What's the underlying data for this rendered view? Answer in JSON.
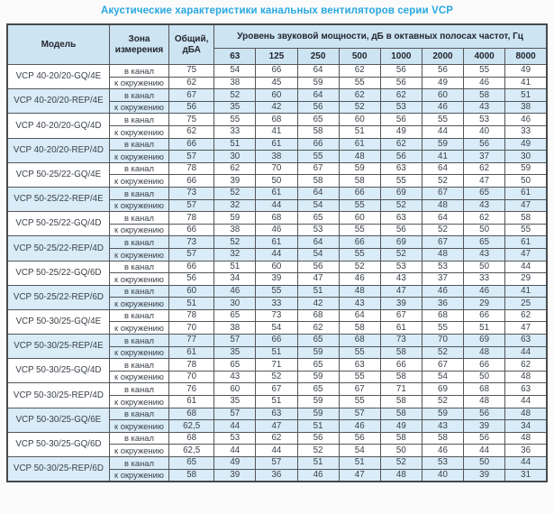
{
  "title": "Акустические характеристики канальных вентиляторов  серии VCP",
  "table": {
    "headers": {
      "model": "Модель",
      "zone": "Зона измерения",
      "total": "Общий, дБА",
      "octave_group": "Уровень звуковой мощности, дБ в октавных полосах частот, Гц",
      "frequencies": [
        "63",
        "125",
        "250",
        "500",
        "1000",
        "2000",
        "4000",
        "8000"
      ]
    },
    "zone_labels": {
      "duct": "в канал",
      "ambient": "к окружению"
    },
    "highlight_color": "#d9ecf8",
    "header_color": "#cde4f3",
    "title_color": "#29a8e0",
    "rows": [
      {
        "model": "VCP 40-20/20-GQ/4E",
        "highlight": false,
        "duct": {
          "total": "75",
          "octaves": [
            "54",
            "66",
            "64",
            "62",
            "56",
            "56",
            "55",
            "49"
          ]
        },
        "ambient": {
          "total": "62",
          "octaves": [
            "38",
            "45",
            "59",
            "55",
            "56",
            "49",
            "46",
            "41"
          ]
        }
      },
      {
        "model": "VCP 40-20/20-REP/4E",
        "highlight": true,
        "duct": {
          "total": "67",
          "octaves": [
            "52",
            "60",
            "64",
            "62",
            "62",
            "60",
            "58",
            "51"
          ]
        },
        "ambient": {
          "total": "56",
          "octaves": [
            "35",
            "42",
            "56",
            "52",
            "53",
            "46",
            "43",
            "38"
          ]
        }
      },
      {
        "model": "VCP 40-20/20-GQ/4D",
        "highlight": false,
        "duct": {
          "total": "75",
          "octaves": [
            "55",
            "68",
            "65",
            "60",
            "56",
            "55",
            "53",
            "46"
          ]
        },
        "ambient": {
          "total": "62",
          "octaves": [
            "33",
            "41",
            "58",
            "51",
            "49",
            "44",
            "40",
            "33"
          ]
        }
      },
      {
        "model": "VCP 40-20/20-REP/4D",
        "highlight": true,
        "duct": {
          "total": "66",
          "octaves": [
            "51",
            "61",
            "66",
            "61",
            "62",
            "59",
            "56",
            "49"
          ]
        },
        "ambient": {
          "total": "57",
          "octaves": [
            "30",
            "38",
            "55",
            "48",
            "56",
            "41",
            "37",
            "30"
          ]
        }
      },
      {
        "model": "VCP 50-25/22-GQ/4E",
        "highlight": false,
        "duct": {
          "total": "78",
          "octaves": [
            "62",
            "70",
            "67",
            "59",
            "63",
            "64",
            "62",
            "59"
          ]
        },
        "ambient": {
          "total": "66",
          "octaves": [
            "39",
            "50",
            "58",
            "58",
            "55",
            "52",
            "47",
            "50"
          ]
        }
      },
      {
        "model": "VCP 50-25/22-REP/4E",
        "highlight": true,
        "duct": {
          "total": "73",
          "octaves": [
            "52",
            "61",
            "64",
            "66",
            "69",
            "67",
            "65",
            "61"
          ]
        },
        "ambient": {
          "total": "57",
          "octaves": [
            "32",
            "44",
            "54",
            "55",
            "52",
            "48",
            "43",
            "47"
          ]
        }
      },
      {
        "model": "VCP 50-25/22-GQ/4D",
        "highlight": false,
        "duct": {
          "total": "78",
          "octaves": [
            "59",
            "68",
            "65",
            "60",
            "63",
            "64",
            "62",
            "58"
          ]
        },
        "ambient": {
          "total": "66",
          "octaves": [
            "38",
            "46",
            "53",
            "55",
            "56",
            "52",
            "50",
            "55"
          ]
        }
      },
      {
        "model": "VCP 50-25/22-REP/4D",
        "highlight": true,
        "duct": {
          "total": "73",
          "octaves": [
            "52",
            "61",
            "64",
            "66",
            "69",
            "67",
            "65",
            "61"
          ]
        },
        "ambient": {
          "total": "57",
          "octaves": [
            "32",
            "44",
            "54",
            "55",
            "52",
            "48",
            "43",
            "47"
          ]
        }
      },
      {
        "model": "VCP 50-25/22-GQ/6D",
        "highlight": false,
        "duct": {
          "total": "66",
          "octaves": [
            "51",
            "60",
            "56",
            "52",
            "53",
            "53",
            "50",
            "44"
          ]
        },
        "ambient": {
          "total": "56",
          "octaves": [
            "34",
            "39",
            "47",
            "46",
            "43",
            "37",
            "33",
            "29"
          ]
        }
      },
      {
        "model": "VCP 50-25/22-REP/6D",
        "highlight": true,
        "duct": {
          "total": "60",
          "octaves": [
            "46",
            "55",
            "51",
            "48",
            "47",
            "46",
            "46",
            "41"
          ]
        },
        "ambient": {
          "total": "51",
          "octaves": [
            "30",
            "33",
            "42",
            "43",
            "39",
            "36",
            "29",
            "25"
          ]
        }
      },
      {
        "model": "VCP 50-30/25-GQ/4E",
        "highlight": false,
        "duct": {
          "total": "78",
          "octaves": [
            "65",
            "73",
            "68",
            "64",
            "67",
            "68",
            "66",
            "62"
          ]
        },
        "ambient": {
          "total": "70",
          "octaves": [
            "38",
            "54",
            "62",
            "58",
            "61",
            "55",
            "51",
            "47"
          ]
        }
      },
      {
        "model": "VCP 50-30/25-REP/4E",
        "highlight": true,
        "duct": {
          "total": "77",
          "octaves": [
            "57",
            "66",
            "65",
            "68",
            "73",
            "70",
            "69",
            "63"
          ]
        },
        "ambient": {
          "total": "61",
          "octaves": [
            "35",
            "51",
            "59",
            "55",
            "58",
            "52",
            "48",
            "44"
          ]
        }
      },
      {
        "model": "VCP 50-30/25-GQ/4D",
        "highlight": false,
        "duct": {
          "total": "78",
          "octaves": [
            "65",
            "71",
            "65",
            "63",
            "66",
            "67",
            "66",
            "62"
          ]
        },
        "ambient": {
          "total": "70",
          "octaves": [
            "43",
            "52",
            "59",
            "55",
            "58",
            "54",
            "50",
            "48"
          ]
        }
      },
      {
        "model": "VCP 50-30/25-REP/4D",
        "highlight": false,
        "duct": {
          "total": "76",
          "octaves": [
            "60",
            "67",
            "65",
            "67",
            "71",
            "69",
            "68",
            "63"
          ]
        },
        "ambient": {
          "total": "61",
          "octaves": [
            "35",
            "51",
            "59",
            "55",
            "58",
            "52",
            "48",
            "44"
          ]
        }
      },
      {
        "model": "VCP 50-30/25-GQ/6E",
        "highlight": true,
        "duct": {
          "total": "68",
          "octaves": [
            "57",
            "63",
            "59",
            "57",
            "58",
            "59",
            "56",
            "48"
          ]
        },
        "ambient": {
          "total": "62,5",
          "octaves": [
            "44",
            "47",
            "51",
            "46",
            "49",
            "43",
            "39",
            "34"
          ]
        }
      },
      {
        "model": "VCP 50-30/25-GQ/6D",
        "highlight": false,
        "duct": {
          "total": "68",
          "octaves": [
            "53",
            "62",
            "56",
            "56",
            "58",
            "58",
            "56",
            "48"
          ]
        },
        "ambient": {
          "total": "62,5",
          "octaves": [
            "44",
            "44",
            "52",
            "54",
            "50",
            "46",
            "44",
            "36"
          ]
        }
      },
      {
        "model": "VCP 50-30/25-REP/6D",
        "highlight": true,
        "duct": {
          "total": "65",
          "octaves": [
            "49",
            "57",
            "51",
            "51",
            "52",
            "53",
            "50",
            "44"
          ]
        },
        "ambient": {
          "total": "58",
          "octaves": [
            "39",
            "36",
            "46",
            "47",
            "48",
            "40",
            "39",
            "31"
          ]
        }
      }
    ]
  }
}
